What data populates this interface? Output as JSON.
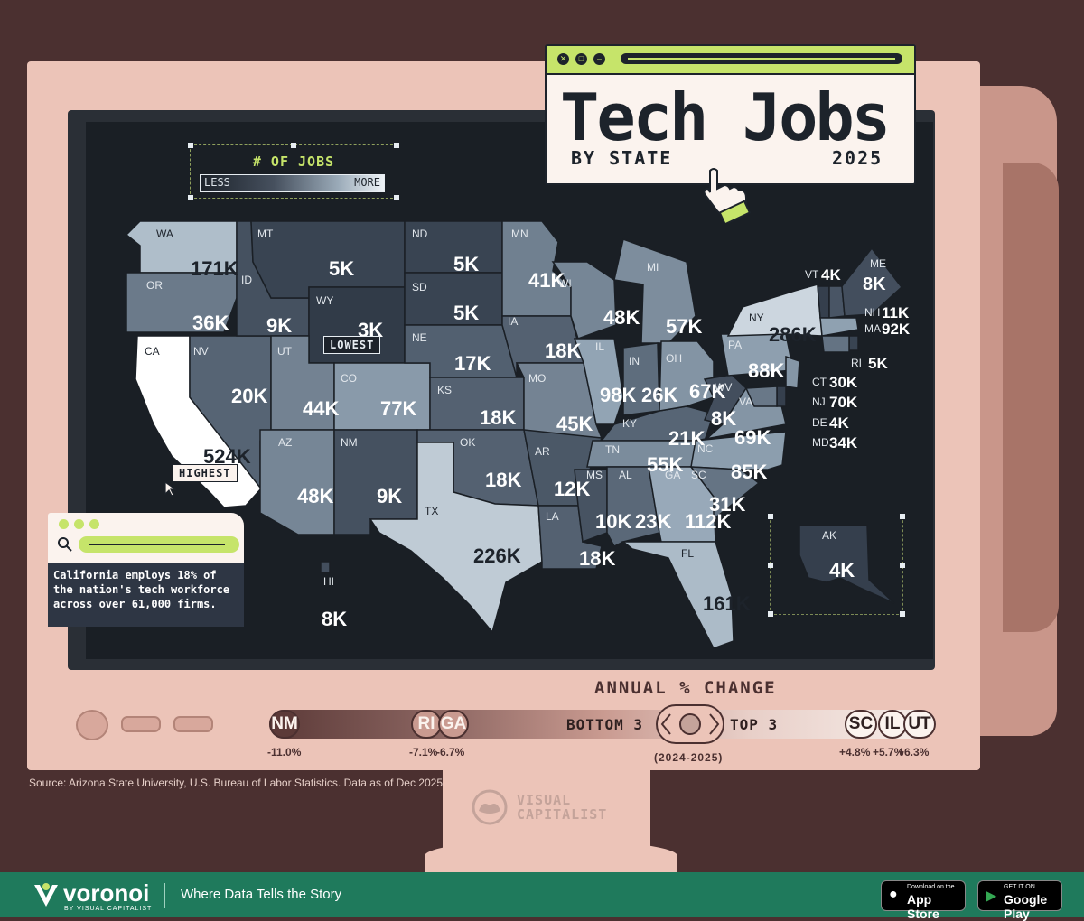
{
  "title": {
    "main": "Tech Jobs",
    "sub": "BY STATE",
    "year": "2025"
  },
  "legend": {
    "title": "# OF JOBS",
    "less": "LESS",
    "more": "MORE"
  },
  "tags": {
    "lowest": "LOWEST",
    "highest": "HIGHEST"
  },
  "callout": {
    "text": "California employs 18% of the nation's tech workforce across over 61,000 firms."
  },
  "annual_change": {
    "title": "ANNUAL % CHANGE",
    "bottom_label": "BOTTOM 3",
    "top_label": "TOP 3",
    "period": "(2024-2025)"
  },
  "source": "Source: Arizona State University, U.S. Bureau of Labor Statistics. Data as of Dec 2025.",
  "brand": {
    "vc_line1": "VISUAL",
    "vc_line2": "CAPITALIST",
    "voronoi": "voronoi",
    "voronoi_sub": "BY VISUAL CAPITALIST",
    "tagline": "Where Data Tells the Story",
    "appstore_small": "Download on the",
    "appstore_big": "App Store",
    "googleplay_small": "GET IT ON",
    "googleplay_big": "Google Play"
  },
  "colors": {
    "accent": "#c6e46a",
    "background": "#4b3030",
    "monitor": "#ecc4b8",
    "screen": "#1a1f25",
    "footer": "#1f7a5c"
  },
  "chart_data": [
    {
      "type": "map",
      "metric": "# OF JOBS",
      "states": [
        {
          "abbr": "WA",
          "label": "171K",
          "value": 171
        },
        {
          "abbr": "OR",
          "label": "36K",
          "value": 36
        },
        {
          "abbr": "CA",
          "label": "524K",
          "value": 524
        },
        {
          "abbr": "NV",
          "label": "20K",
          "value": 20
        },
        {
          "abbr": "ID",
          "label": "9K",
          "value": 9
        },
        {
          "abbr": "MT",
          "label": "5K",
          "value": 5
        },
        {
          "abbr": "WY",
          "label": "3K",
          "value": 3
        },
        {
          "abbr": "UT",
          "label": "44K",
          "value": 44
        },
        {
          "abbr": "CO",
          "label": "77K",
          "value": 77
        },
        {
          "abbr": "AZ",
          "label": "48K",
          "value": 48
        },
        {
          "abbr": "NM",
          "label": "9K",
          "value": 9
        },
        {
          "abbr": "ND",
          "label": "5K",
          "value": 5
        },
        {
          "abbr": "SD",
          "label": "5K",
          "value": 5
        },
        {
          "abbr": "NE",
          "label": "17K",
          "value": 17
        },
        {
          "abbr": "KS",
          "label": "18K",
          "value": 18
        },
        {
          "abbr": "OK",
          "label": "18K",
          "value": 18
        },
        {
          "abbr": "TX",
          "label": "226K",
          "value": 226
        },
        {
          "abbr": "MN",
          "label": "41K",
          "value": 41
        },
        {
          "abbr": "IA",
          "label": "18K",
          "value": 18
        },
        {
          "abbr": "MO",
          "label": "45K",
          "value": 45
        },
        {
          "abbr": "AR",
          "label": "12K",
          "value": 12
        },
        {
          "abbr": "LA",
          "label": "18K",
          "value": 18
        },
        {
          "abbr": "WI",
          "label": "48K",
          "value": 48
        },
        {
          "abbr": "IL",
          "label": "98K",
          "value": 98
        },
        {
          "abbr": "MS",
          "label": "10K",
          "value": 10
        },
        {
          "abbr": "MI",
          "label": "57K",
          "value": 57
        },
        {
          "abbr": "IN",
          "label": "26K",
          "value": 26
        },
        {
          "abbr": "KY",
          "label": "21K",
          "value": 21
        },
        {
          "abbr": "TN",
          "label": "55K",
          "value": 55
        },
        {
          "abbr": "AL",
          "label": "23K",
          "value": 23
        },
        {
          "abbr": "GA",
          "label": "112K",
          "value": 112
        },
        {
          "abbr": "FL",
          "label": "161K",
          "value": 161
        },
        {
          "abbr": "OH",
          "label": "67K",
          "value": 67
        },
        {
          "abbr": "WV",
          "label": "8K",
          "value": 8
        },
        {
          "abbr": "VA",
          "label": "69K",
          "value": 69
        },
        {
          "abbr": "NC",
          "label": "85K",
          "value": 85
        },
        {
          "abbr": "SC",
          "label": "31K",
          "value": 31
        },
        {
          "abbr": "PA",
          "label": "88K",
          "value": 88
        },
        {
          "abbr": "NY",
          "label": "286K",
          "value": 286
        },
        {
          "abbr": "VT",
          "label": "4K",
          "value": 4
        },
        {
          "abbr": "ME",
          "label": "8K",
          "value": 8
        },
        {
          "abbr": "NH",
          "label": "11K",
          "value": 11
        },
        {
          "abbr": "MA",
          "label": "92K",
          "value": 92
        },
        {
          "abbr": "RI",
          "label": "5K",
          "value": 5
        },
        {
          "abbr": "CT",
          "label": "30K",
          "value": 30
        },
        {
          "abbr": "NJ",
          "label": "70K",
          "value": 70
        },
        {
          "abbr": "DE",
          "label": "4K",
          "value": 4
        },
        {
          "abbr": "MD",
          "label": "34K",
          "value": 34
        },
        {
          "abbr": "HI",
          "label": "8K",
          "value": 8
        },
        {
          "abbr": "AK",
          "label": "4K",
          "value": 4
        }
      ]
    },
    {
      "type": "bar",
      "title": "ANNUAL % CHANGE",
      "period": "(2024-2025)",
      "categories": [
        "NM",
        "RI",
        "GA",
        "SC",
        "IL",
        "UT"
      ],
      "values": [
        -11.0,
        -7.1,
        -6.7,
        4.8,
        5.7,
        6.3
      ],
      "labels": [
        "-11.0%",
        "-7.1%",
        "-6.7%",
        "+4.8%",
        "+5.7%",
        "+6.3%"
      ],
      "groups": {
        "BOTTOM 3": [
          "NM",
          "RI",
          "GA"
        ],
        "TOP 3": [
          "SC",
          "IL",
          "UT"
        ]
      }
    }
  ]
}
